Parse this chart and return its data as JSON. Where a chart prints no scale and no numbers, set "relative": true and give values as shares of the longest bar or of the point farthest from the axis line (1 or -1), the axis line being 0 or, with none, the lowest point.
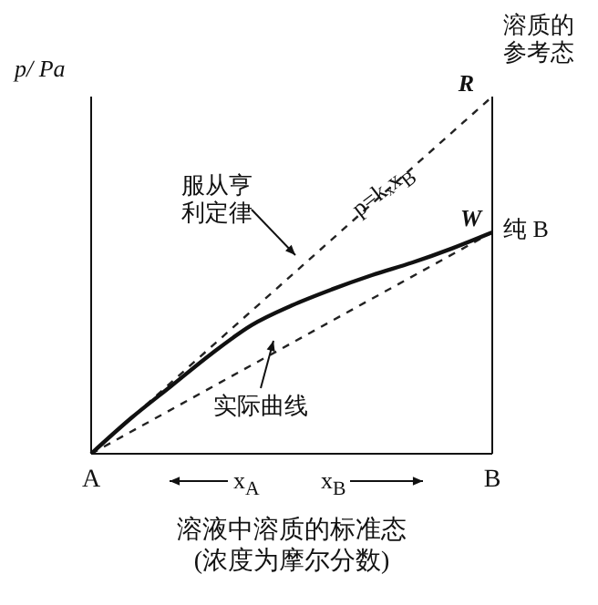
{
  "chart_data": {
    "type": "line",
    "relative": true,
    "ylabel": "p/ Pa",
    "xlabel": "溶液中溶质的标准态\n(浓度为摩尔分数)",
    "categories": [
      "A",
      null,
      null,
      null,
      null,
      null,
      null,
      null,
      null,
      null,
      "B"
    ],
    "tick_labels": "x",
    "marker": "none",
    "series": [
      {
        "color": "#222222",
        "line_style": "dashed",
        "values": [
          0,
          null,
          null,
          null,
          null,
          null,
          null,
          null,
          null,
          null,
          1
        ]
      },
      {
        "color": "#222222",
        "line_style": "dashed",
        "values": [
          0,
          null,
          null,
          null,
          null,
          null,
          null,
          null,
          null,
          null,
          0.62
        ]
      },
      {
        "color": "#111111",
        "line_style": "solid",
        "values": [
          0,
          0.1,
          0.19,
          0.28,
          0.36,
          0.415,
          0.46,
          0.5,
          0.535,
          0.575,
          0.62
        ]
      }
    ],
    "annotations": [
      "R",
      "W",
      "纯 B",
      "溶质的参考态",
      "服从亨利定律",
      "p=kₓx$_{B}$",
      "实际曲线",
      "x$_{A}$",
      "x$_{B}$"
    ]
  }
}
